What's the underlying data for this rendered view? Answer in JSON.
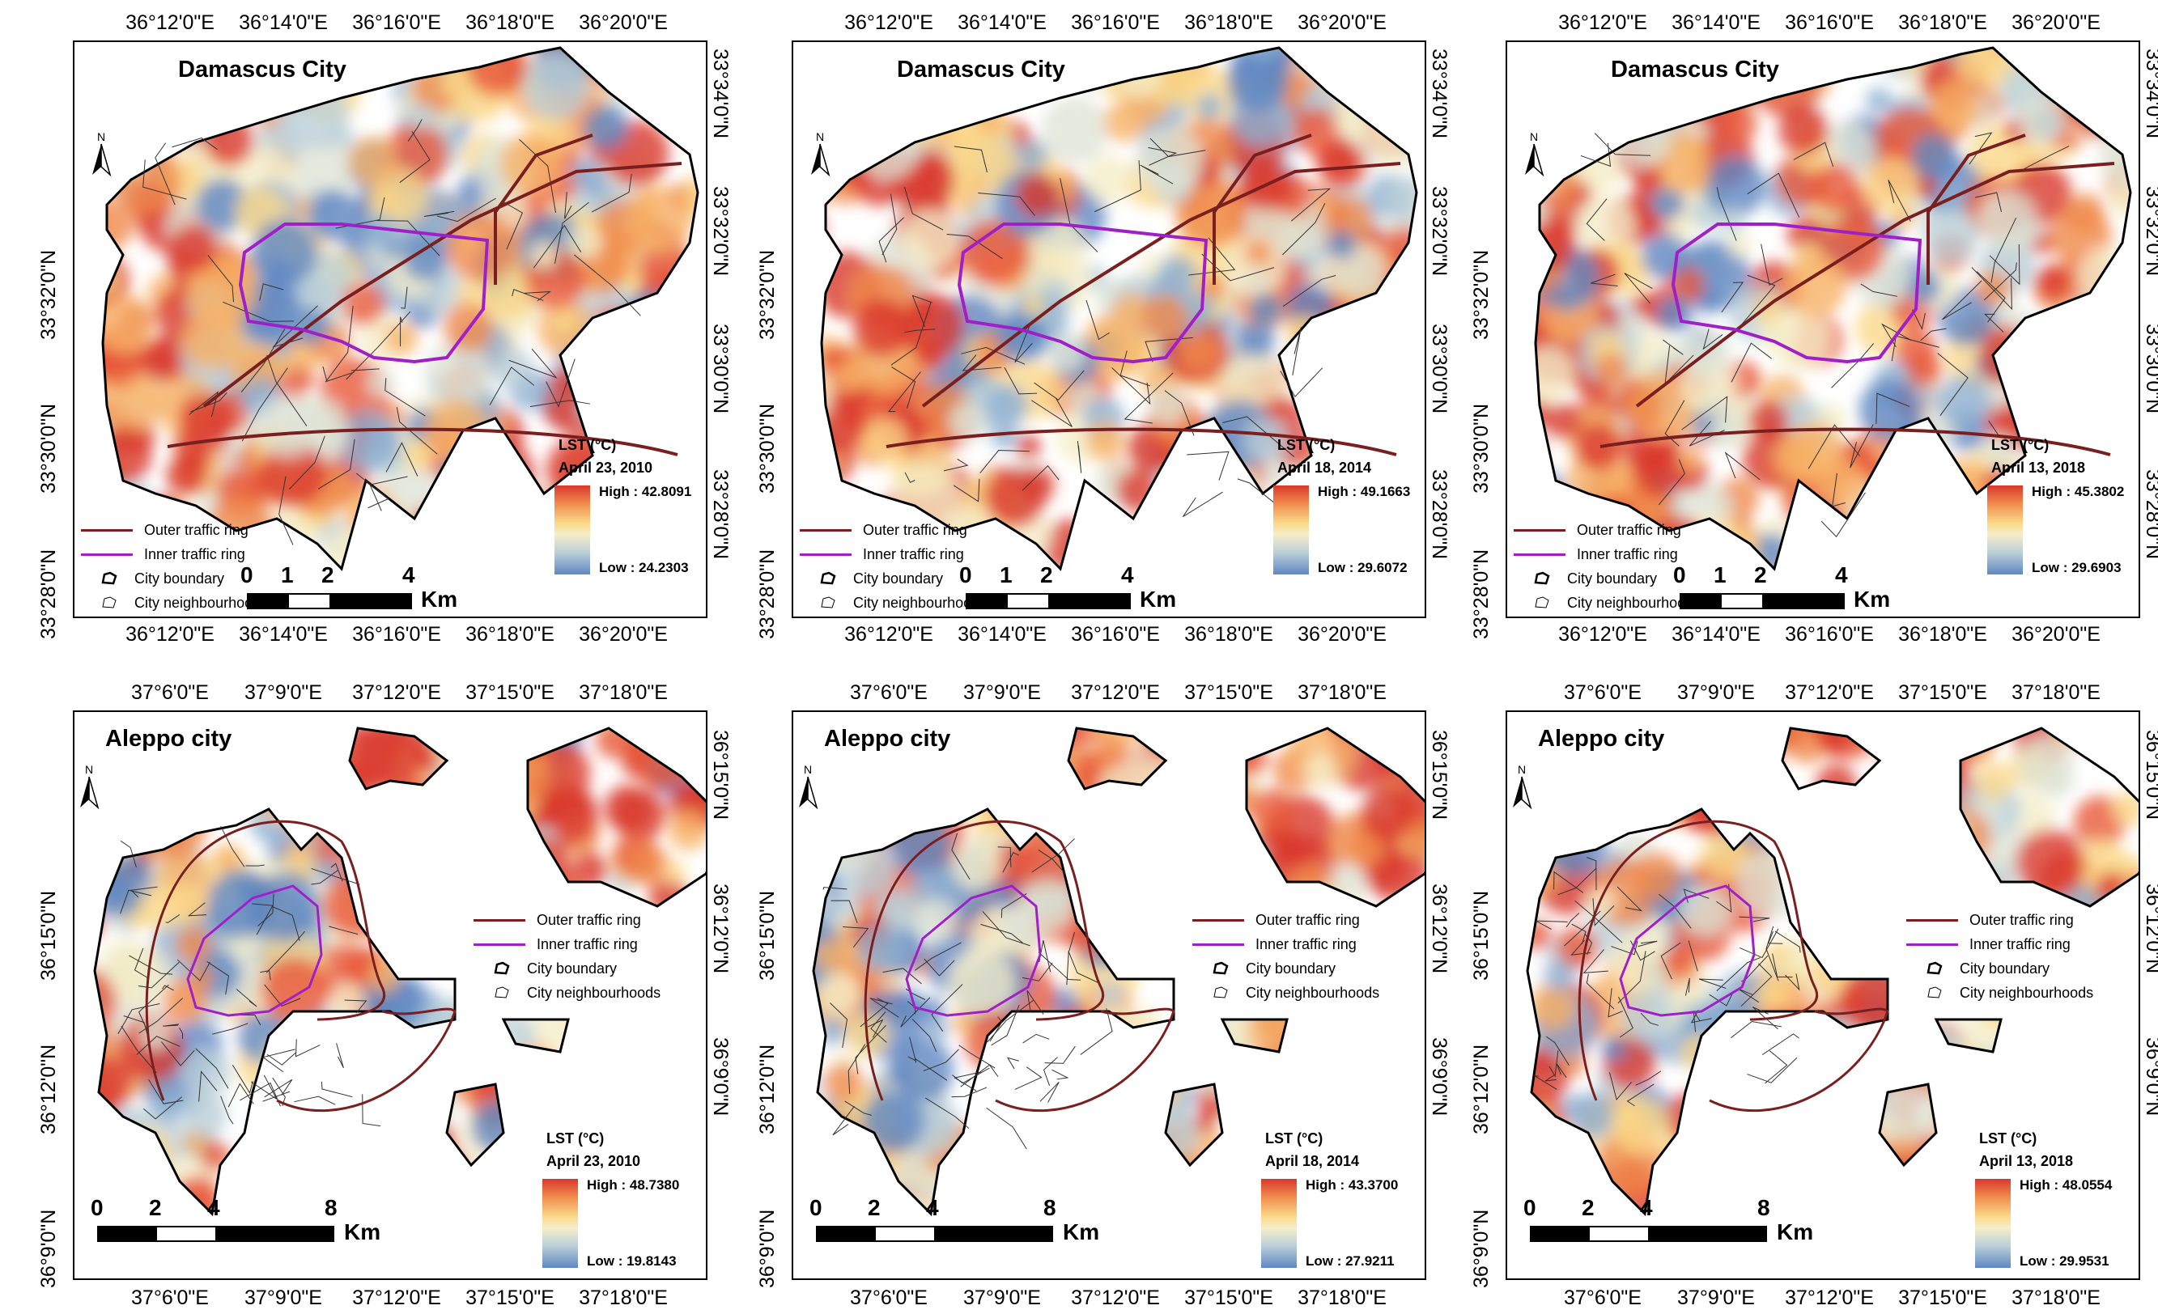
{
  "colors": {
    "hot": "#d9382d",
    "warm": "#f4a261",
    "mid": "#f5eec9",
    "cool": "#6b8fc5",
    "outer_ring": "#7a1f1f",
    "inner_ring": "#a020c8"
  },
  "damascus": {
    "title": "Damascus City",
    "top_ticks": [
      "36°12'0\"E",
      "36°14'0\"E",
      "36°16'0\"E",
      "36°18'0\"E",
      "36°20'0\"E"
    ],
    "bottom_ticks": [
      "36°12'0\"E",
      "36°14'0\"E",
      "36°16'0\"E",
      "36°18'0\"E",
      "36°20'0\"E"
    ],
    "left_ticks": [
      "33°32'0\"N",
      "33°30'0\"N",
      "33°28'0\"N"
    ],
    "right_ticks": [
      "33°34'0\"N",
      "33°32'0\"N",
      "33°30'0\"N",
      "33°28'0\"N"
    ],
    "legend": [
      "Outer traffic ring",
      "Inner traffic ring",
      "City boundary",
      "City neighbourhoods"
    ],
    "lst_label": "LST (°C)",
    "scale_numbers": [
      "0",
      "1",
      "2",
      "4"
    ],
    "scale_unit": "Km",
    "panels": [
      {
        "date": "April 23, 2010",
        "high": "High : 42.8091",
        "low": "Low : 24.2303"
      },
      {
        "date": "April 18, 2014",
        "high": "High : 49.1663",
        "low": "Low : 29.6072"
      },
      {
        "date": "April 13, 2018",
        "high": "High : 45.3802",
        "low": "Low : 29.6903"
      }
    ]
  },
  "aleppo": {
    "title": "Aleppo city",
    "top_ticks": [
      "37°6'0\"E",
      "37°9'0\"E",
      "37°12'0\"E",
      "37°15'0\"E",
      "37°18'0\"E"
    ],
    "bottom_ticks": [
      "37°6'0\"E",
      "37°9'0\"E",
      "37°12'0\"E",
      "37°15'0\"E",
      "37°18'0\"E"
    ],
    "left_ticks": [
      "36°15'0\"N",
      "36°12'0\"N",
      "36°9'0\"N"
    ],
    "right_ticks": [
      "36°15'0\"N",
      "36°12'0\"N",
      "36°9'0\"N"
    ],
    "legend": [
      "Outer traffic ring",
      "Inner traffic ring",
      "City boundary",
      "City neighbourhoods"
    ],
    "lst_label": "LST (°C)",
    "scale_numbers": [
      "0",
      "2",
      "4",
      "8"
    ],
    "scale_unit": "Km",
    "panels": [
      {
        "date": "April 23, 2010",
        "high": "High : 48.7380",
        "low": "Low : 19.8143"
      },
      {
        "date": "April 18, 2014",
        "high": "High : 43.3700",
        "low": "Low : 27.9211"
      },
      {
        "date": "April 13, 2018",
        "high": "High : 48.0554",
        "low": "Low : 29.9531"
      }
    ]
  },
  "north_label": "N"
}
